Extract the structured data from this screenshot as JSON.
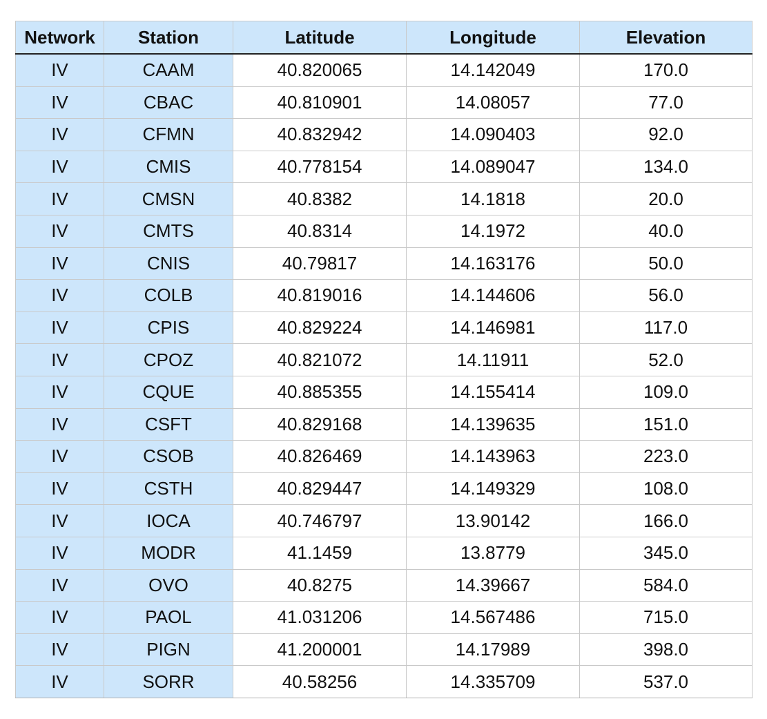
{
  "table": {
    "headers": [
      "Network",
      "Station",
      "Latitude",
      "Longitude",
      "Elevation"
    ],
    "rows": [
      [
        "IV",
        "CAAM",
        "40.820065",
        "14.142049",
        "170.0"
      ],
      [
        "IV",
        "CBAC",
        "40.810901",
        "14.08057",
        "77.0"
      ],
      [
        "IV",
        "CFMN",
        "40.832942",
        "14.090403",
        "92.0"
      ],
      [
        "IV",
        "CMIS",
        "40.778154",
        "14.089047",
        "134.0"
      ],
      [
        "IV",
        "CMSN",
        "40.8382",
        "14.1818",
        "20.0"
      ],
      [
        "IV",
        "CMTS",
        "40.8314",
        "14.1972",
        "40.0"
      ],
      [
        "IV",
        "CNIS",
        "40.79817",
        "14.163176",
        "50.0"
      ],
      [
        "IV",
        "COLB",
        "40.819016",
        "14.144606",
        "56.0"
      ],
      [
        "IV",
        "CPIS",
        "40.829224",
        "14.146981",
        "117.0"
      ],
      [
        "IV",
        "CPOZ",
        "40.821072",
        "14.11911",
        "52.0"
      ],
      [
        "IV",
        "CQUE",
        "40.885355",
        "14.155414",
        "109.0"
      ],
      [
        "IV",
        "CSFT",
        "40.829168",
        "14.139635",
        "151.0"
      ],
      [
        "IV",
        "CSOB",
        "40.826469",
        "14.143963",
        "223.0"
      ],
      [
        "IV",
        "CSTH",
        "40.829447",
        "14.149329",
        "108.0"
      ],
      [
        "IV",
        "IOCA",
        "40.746797",
        "13.90142",
        "166.0"
      ],
      [
        "IV",
        "MODR",
        "41.1459",
        "13.8779",
        "345.0"
      ],
      [
        "IV",
        "OVO",
        "40.8275",
        "14.39667",
        "584.0"
      ],
      [
        "IV",
        "PAOL",
        "41.031206",
        "14.567486",
        "715.0"
      ],
      [
        "IV",
        "PIGN",
        "41.200001",
        "14.17989",
        "398.0"
      ],
      [
        "IV",
        "SORR",
        "40.58256",
        "14.335709",
        "537.0"
      ]
    ]
  },
  "colors": {
    "header_bg": "#cde6fb",
    "key_column_bg": "#cde6fb",
    "grid": "#c9c9c9",
    "header_rule": "#222222"
  }
}
